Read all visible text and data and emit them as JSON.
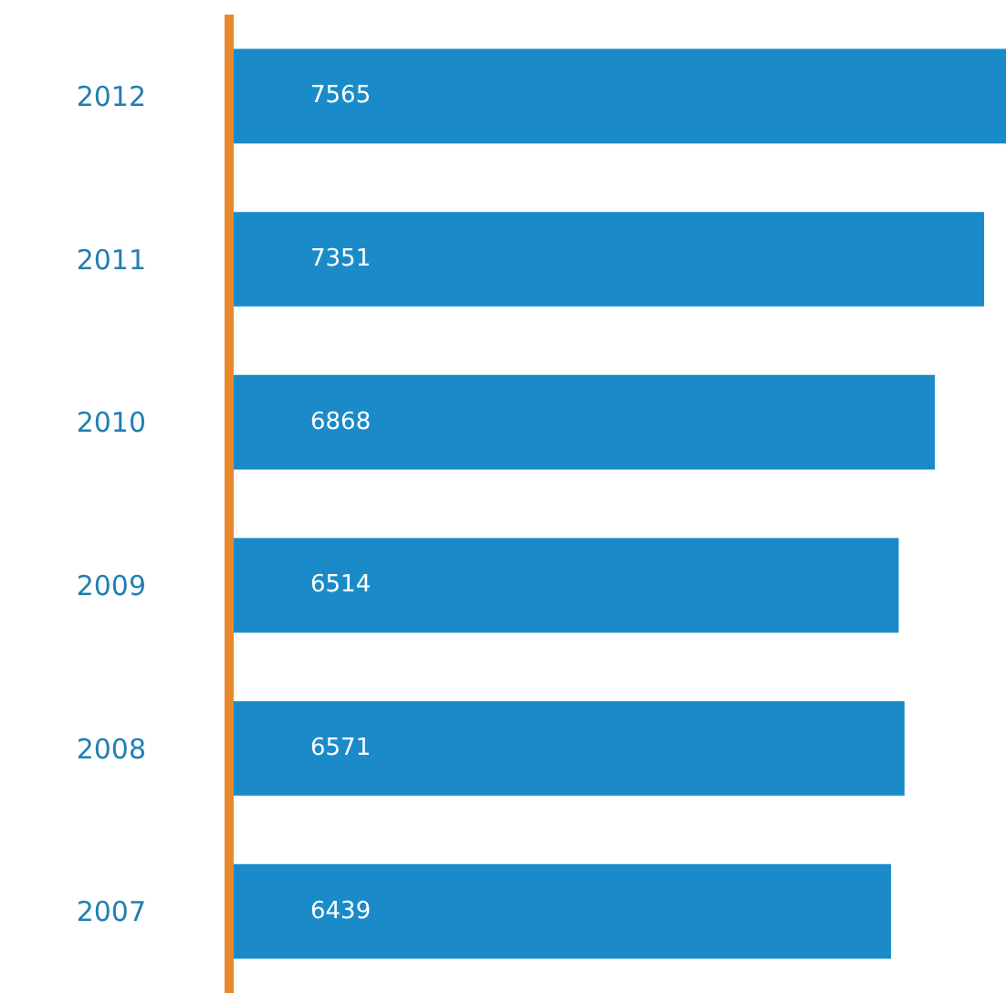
{
  "chart_data": {
    "type": "bar",
    "orientation": "horizontal",
    "categories": [
      "2012",
      "2011",
      "2010",
      "2009",
      "2008",
      "2007"
    ],
    "series": [
      {
        "color": "#1a8bc8",
        "values": [
          7565,
          7351,
          6868,
          6514,
          6571,
          6439
        ]
      }
    ],
    "data_labels": true
  }
}
